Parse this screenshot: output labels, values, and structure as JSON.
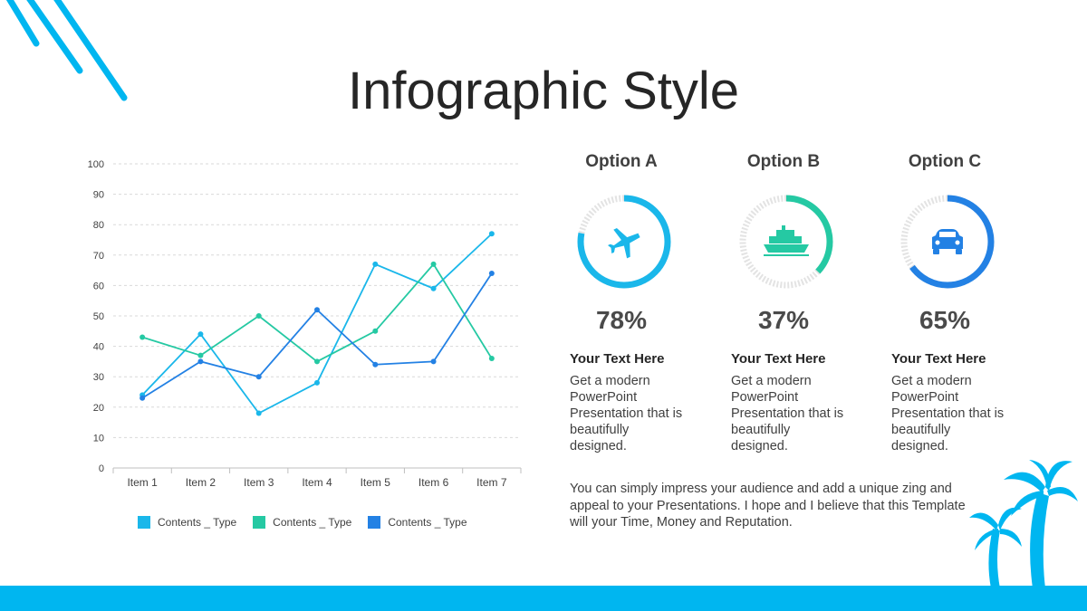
{
  "title": "Infographic Style",
  "colors": {
    "accent": "#00b6f0",
    "series1": "#1ab7ea",
    "series2": "#25c9a3",
    "series3": "#2381e4",
    "ring_track": "#e0e0e0"
  },
  "chart_data": {
    "type": "line",
    "categories": [
      "Item 1",
      "Item 2",
      "Item 3",
      "Item 4",
      "Item 5",
      "Item 6",
      "Item 7"
    ],
    "series": [
      {
        "name": "Contents _ Type",
        "color": "#1ab7ea",
        "values": [
          24,
          44,
          18,
          28,
          67,
          59,
          77
        ]
      },
      {
        "name": "Contents _ Type",
        "color": "#25c9a3",
        "values": [
          43,
          37,
          50,
          35,
          45,
          67,
          36
        ]
      },
      {
        "name": "Contents _ Type",
        "color": "#2381e4",
        "values": [
          23,
          35,
          30,
          52,
          34,
          35,
          64
        ]
      }
    ],
    "ylim": [
      0,
      100
    ],
    "yticks": [
      0,
      10,
      20,
      30,
      40,
      50,
      60,
      70,
      80,
      90,
      100
    ],
    "grid": true,
    "legend_position": "bottom",
    "title": "",
    "xlabel": "",
    "ylabel": ""
  },
  "options": [
    {
      "name": "Option A",
      "icon": "airplane-icon",
      "percent": 78,
      "percent_label": "78%",
      "color": "#1ab7ea",
      "subtitle": "Your Text  Here",
      "text": "Get a modern PowerPoint Presentation that is beautifully designed."
    },
    {
      "name": "Option B",
      "icon": "ship-icon",
      "percent": 37,
      "percent_label": "37%",
      "color": "#25c9a3",
      "subtitle": "Your Text  Here",
      "text": "Get a modern PowerPoint Presentation that is beautifully designed."
    },
    {
      "name": "Option C",
      "icon": "car-icon",
      "percent": 65,
      "percent_label": "65%",
      "color": "#2381e4",
      "subtitle": "Your Text  Here",
      "text": "Get a modern PowerPoint Presentation that is beautifully designed."
    }
  ],
  "paragraph": "You can simply impress your audience and add a unique zing and appeal to your Presentations. I hope and I believe that this Template will your Time, Money and Reputation."
}
